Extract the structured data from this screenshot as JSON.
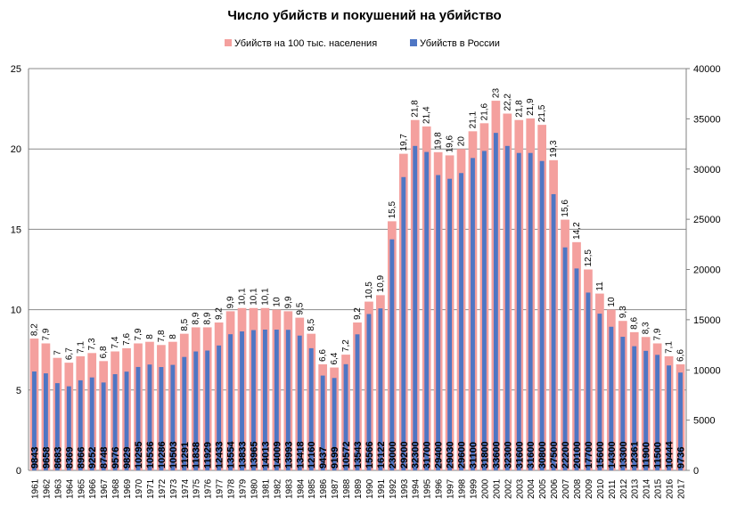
{
  "chart_data": {
    "type": "bar",
    "title": "Число убийств и покушений на убийство",
    "legend_position": "top",
    "grid": true,
    "categories": [
      "1961",
      "1962",
      "1963",
      "1964",
      "1965",
      "1966",
      "1967",
      "1968",
      "1969",
      "1970",
      "1971",
      "1972",
      "1973",
      "1974",
      "1975",
      "1976",
      "1977",
      "1978",
      "1979",
      "1980",
      "1981",
      "1982",
      "1983",
      "1984",
      "1985",
      "1986",
      "1987",
      "1988",
      "1989",
      "1990",
      "1991",
      "1992",
      "1993",
      "1994",
      "1995",
      "1996",
      "1997",
      "1998",
      "1999",
      "2000",
      "2001",
      "2002",
      "2003",
      "2004",
      "2005",
      "2006",
      "2007",
      "2008",
      "2009",
      "2010",
      "2011",
      "2012",
      "2013",
      "2014",
      "2015",
      "2016",
      "2017"
    ],
    "ylim_left": [
      0,
      25
    ],
    "ylim_right": [
      0,
      40000
    ],
    "yticks_left": [
      "0",
      "5",
      "10",
      "15",
      "20",
      "25"
    ],
    "yticks_right": [
      "0",
      "5000",
      "10000",
      "15000",
      "20000",
      "25000",
      "30000",
      "35000",
      "40000"
    ],
    "series": [
      {
        "name": "Убийств на 100 тыс. населения",
        "axis": "left",
        "color": "#F4A09E",
        "values": [
          8.2,
          7.9,
          7,
          6.7,
          7.1,
          7.3,
          6.8,
          7.4,
          7.6,
          7.9,
          8,
          7.8,
          8,
          8.5,
          8.9,
          8.9,
          9.2,
          9.9,
          10.1,
          10.1,
          10.1,
          10,
          9.9,
          9.5,
          8.5,
          6.6,
          6.4,
          7.2,
          9.2,
          10.5,
          10.9,
          15.5,
          19.7,
          21.8,
          21.4,
          19.8,
          19.6,
          20,
          21.1,
          21.6,
          23,
          22.2,
          21.8,
          21.9,
          21.5,
          19.3,
          15.6,
          14.2,
          12.5,
          11,
          10,
          9.3,
          8.6,
          8.3,
          7.9,
          7.1,
          6.6
        ],
        "labels": [
          "8,2",
          "7,9",
          "7",
          "6,7",
          "7,1",
          "7,3",
          "6,8",
          "7,4",
          "7,6",
          "7,9",
          "8",
          "7,8",
          "8",
          "8,5",
          "8,9",
          "8,9",
          "9,2",
          "9,9",
          "10,1",
          "10,1",
          "10,1",
          "10",
          "9,9",
          "9,5",
          "8,5",
          "6,6",
          "6,4",
          "7,2",
          "9,2",
          "10,5",
          "10,9",
          "15,5",
          "19,7",
          "21,8",
          "21,4",
          "19,8",
          "19,6",
          "20",
          "21,1",
          "21,6",
          "23",
          "22,2",
          "21,8",
          "21,9",
          "21,5",
          "19,3",
          "15,6",
          "14,2",
          "12,5",
          "11",
          "10",
          "9,3",
          "8,6",
          "8,3",
          "7,9",
          "7,1",
          "6,6"
        ]
      },
      {
        "name": "Убийств в России",
        "axis": "right",
        "color": "#4F76C4",
        "values": [
          9843,
          9658,
          8683,
          8369,
          8966,
          9252,
          8748,
          9576,
          9829,
          10295,
          10536,
          10286,
          10503,
          11291,
          11838,
          11929,
          12433,
          13554,
          13833,
          13965,
          14013,
          14009,
          13993,
          13418,
          12160,
          9437,
          9199,
          10572,
          13543,
          15566,
          16122,
          23000,
          29200,
          32300,
          31700,
          29400,
          29030,
          29600,
          31100,
          31800,
          33600,
          32300,
          31600,
          31600,
          30800,
          27500,
          22200,
          20100,
          17700,
          15600,
          14300,
          13300,
          12361,
          11900,
          11500,
          10444,
          9736
        ],
        "labels": [
          "9843",
          "9658",
          "8683",
          "8369",
          "8966",
          "9252",
          "8748",
          "9576",
          "9829",
          "10295",
          "10536",
          "10286",
          "10503",
          "11291",
          "11838",
          "11929",
          "12433",
          "13554",
          "13833",
          "13965",
          "14013",
          "14009",
          "13993",
          "13418",
          "12160",
          "9437",
          "9199",
          "10572",
          "13543",
          "15566",
          "16122",
          "23000",
          "29200",
          "32300",
          "31700",
          "29400",
          "29030",
          "29600",
          "31100",
          "31800",
          "33600",
          "32300",
          "31600",
          "31600",
          "30800",
          "27500",
          "22200",
          "20100",
          "17700",
          "15600",
          "14300",
          "13300",
          "12361",
          "11900",
          "11500",
          "10444",
          "9736"
        ]
      }
    ]
  }
}
